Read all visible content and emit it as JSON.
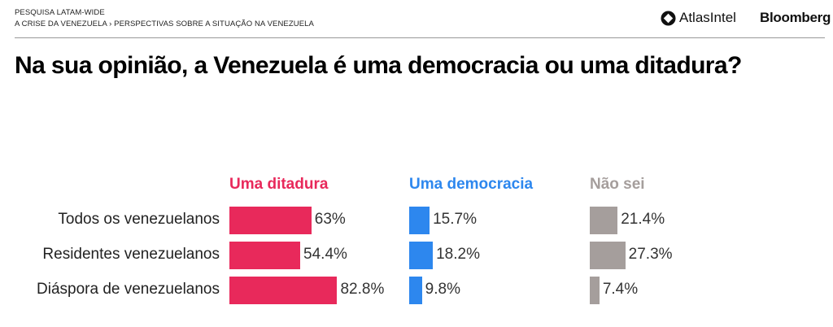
{
  "header": {
    "breadcrumb_top": "PESQUISA LATAM-WIDE",
    "breadcrumb_path": "A CRISE DA VENEZUELA › PERSPECTIVAS SOBRE A SITUAÇÃO NA VENEZUELA",
    "logo_atlas": "AtlasIntel",
    "logo_bloomberg": "Bloomberg"
  },
  "chart_data": {
    "type": "bar",
    "orientation": "horizontal",
    "layout": "small-multiples",
    "title": "Na sua opinião, a Venezuela é uma democracia ou uma ditadura?",
    "categories": [
      "Todos os venezuelanos",
      "Residentes venezuelanos",
      "Diáspora de venezuelanos"
    ],
    "unit": "%",
    "series": [
      {
        "name": "Uma ditadura",
        "color": "#E8295B",
        "values": [
          63,
          54.4,
          82.8
        ],
        "labels": [
          "63%",
          "54.4%",
          "82.8%"
        ]
      },
      {
        "name": "Uma democracia",
        "color": "#2D87EE",
        "values": [
          15.7,
          18.2,
          9.8
        ],
        "labels": [
          "15.7%",
          "18.2%",
          "9.8%"
        ]
      },
      {
        "name": "Não sei",
        "color": "#A59E9C",
        "values": [
          21.4,
          27.3,
          7.4
        ],
        "labels": [
          "21.4%",
          "27.3%",
          "7.4%"
        ]
      }
    ]
  }
}
